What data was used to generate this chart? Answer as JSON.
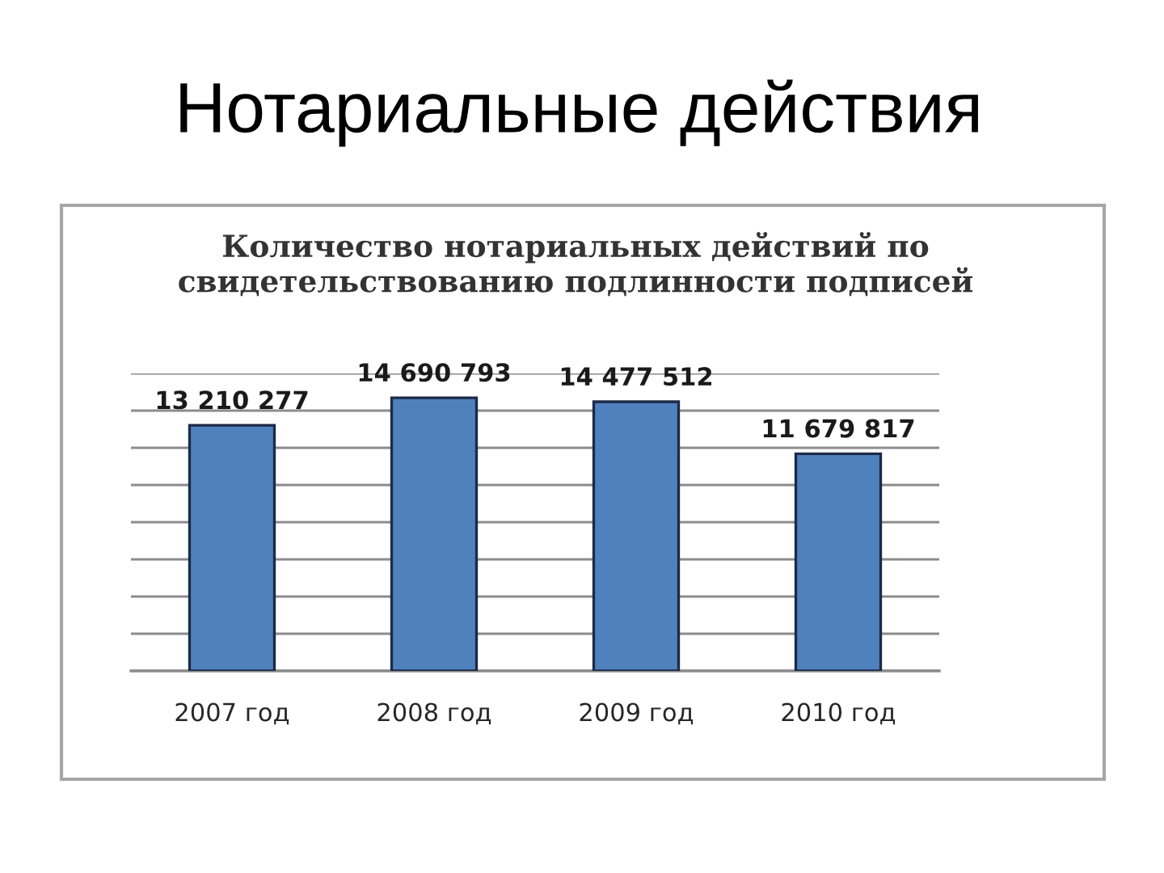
{
  "chart_data": {
    "type": "bar",
    "title": "Нотариальные действия",
    "subtitle": "Количество нотариальных действий по\nсвидетельствованию подлинности подписей",
    "categories": [
      "2007 год",
      "2008 год",
      "2009 год",
      "2010 год"
    ],
    "values": [
      13210277,
      14690793,
      14477512,
      11679817
    ],
    "value_labels": [
      "13 210 277",
      "14 690 793",
      "14 477 512",
      "11 679 817"
    ],
    "color": "#4f81bd",
    "ylim": [
      0,
      16000000
    ],
    "yticks": [
      {
        "value": 0,
        "label": null
      },
      {
        "value": 2000000,
        "label": null
      },
      {
        "value": 4000000,
        "label": null
      },
      {
        "value": 6000000,
        "label": null
      },
      {
        "value": 8000000,
        "label": null
      },
      {
        "value": 10000000,
        "label": null
      },
      {
        "value": 12000000,
        "label": null
      },
      {
        "value": 14000000,
        "label": null
      },
      {
        "value": 16000000,
        "label": null
      }
    ],
    "grid": "y",
    "tick_labels": "x"
  }
}
